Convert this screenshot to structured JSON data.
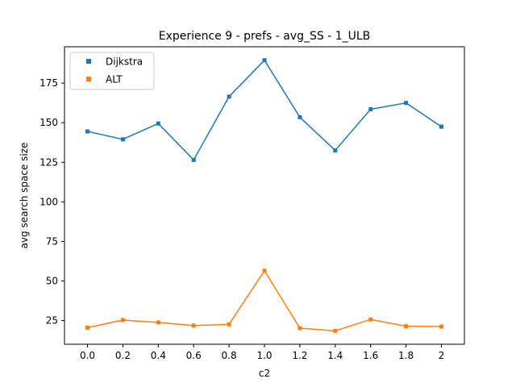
{
  "chart_data": {
    "type": "line",
    "title": "Experience 9 - prefs - avg_SS - 1_ULB",
    "xlabel": "c2",
    "ylabel": "avg search space size",
    "x": [
      0.0,
      0.2,
      0.4,
      0.6,
      0.8,
      1.0,
      1.2,
      1.4,
      1.6,
      1.8,
      2.0
    ],
    "x_tick_labels": [
      "0.0",
      "0.2",
      "0.4",
      "0.6",
      "0.8",
      "1.0",
      "1.2",
      "1.4",
      "1.6",
      "1.8",
      "2"
    ],
    "y_ticks": [
      25,
      50,
      75,
      100,
      125,
      150,
      175
    ],
    "xlim": [
      -0.13,
      2.13
    ],
    "ylim": [
      10,
      198
    ],
    "grid": false,
    "legend_position": "top-left",
    "series": [
      {
        "name": "Dijkstra",
        "color": "#1f77b4",
        "marker": "square",
        "values": [
          144.5,
          139.5,
          149.5,
          126.5,
          166.5,
          189.5,
          153.5,
          132.5,
          158.5,
          162.5,
          147.5
        ]
      },
      {
        "name": "ALT",
        "color": "#ff7f0e",
        "marker": "square",
        "values": [
          20.5,
          25.3,
          23.8,
          21.8,
          22.6,
          56.5,
          20.2,
          18.5,
          25.7,
          21.4,
          21.2
        ]
      }
    ]
  }
}
